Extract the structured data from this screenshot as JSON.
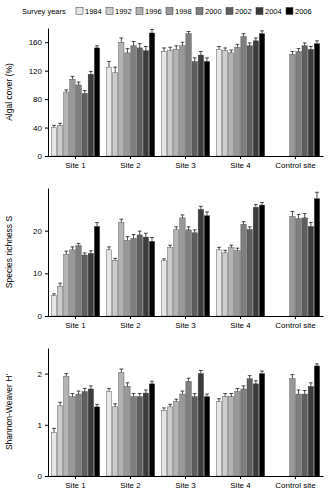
{
  "chart_data": [
    {
      "type": "bar",
      "y_label": "Algal cover (%)",
      "legend_title": "Survey years",
      "legend": "top",
      "categories": [
        "Site 1",
        "Site 2",
        "Site 3",
        "Site 4",
        "Control site"
      ],
      "ylim": [
        0,
        180
      ],
      "yticks": [
        0,
        40,
        80,
        120,
        160
      ],
      "series": [
        {
          "name": "1984",
          "color": "#e6e6e6",
          "values": [
            40,
            125,
            147,
            150,
            null
          ],
          "errors": [
            3,
            8,
            5,
            4,
            null
          ]
        },
        {
          "name": "1992",
          "color": "#cccccc",
          "values": [
            43,
            117,
            148,
            148,
            null
          ],
          "errors": [
            3,
            8,
            5,
            4,
            null
          ]
        },
        {
          "name": "1996",
          "color": "#b3b3b3",
          "values": [
            90,
            160,
            150,
            145,
            null
          ],
          "errors": [
            3,
            6,
            5,
            4,
            null
          ]
        },
        {
          "name": "1998",
          "color": "#999999",
          "values": [
            108,
            145,
            155,
            153,
            143
          ],
          "errors": [
            4,
            6,
            5,
            4,
            4
          ]
        },
        {
          "name": "2000",
          "color": "#7f7f7f",
          "values": [
            100,
            155,
            172,
            168,
            147
          ],
          "errors": [
            4,
            6,
            3,
            4,
            4
          ]
        },
        {
          "name": "2002",
          "color": "#5f5f5f",
          "values": [
            88,
            152,
            133,
            155,
            155
          ],
          "errors": [
            4,
            6,
            5,
            4,
            4
          ]
        },
        {
          "name": "2004",
          "color": "#3c3c3c",
          "values": [
            115,
            148,
            142,
            162,
            150
          ],
          "errors": [
            4,
            6,
            5,
            4,
            4
          ]
        },
        {
          "name": "2006",
          "color": "#000000",
          "values": [
            152,
            173,
            133,
            172,
            158
          ],
          "errors": [
            3,
            5,
            5,
            4,
            4
          ]
        }
      ]
    },
    {
      "type": "bar",
      "y_label": "Species richness S",
      "categories": [
        "Site 1",
        "Site 2",
        "Site 3",
        "Site 4",
        "Control site"
      ],
      "ylim": [
        0,
        30
      ],
      "yticks": [
        0,
        10,
        20
      ],
      "series": [
        {
          "color": "#e6e6e6",
          "values": [
            4.8,
            15.5,
            13,
            15.5,
            null
          ],
          "errors": [
            0.4,
            0.7,
            0.4,
            0.6,
            null
          ]
        },
        {
          "color": "#cccccc",
          "values": [
            7,
            13,
            16,
            14.8,
            null
          ],
          "errors": [
            0.7,
            0.5,
            0.6,
            0.6,
            null
          ]
        },
        {
          "color": "#b3b3b3",
          "values": [
            14.5,
            22,
            20.2,
            16,
            null
          ],
          "errors": [
            0.7,
            0.7,
            0.7,
            0.6,
            null
          ]
        },
        {
          "color": "#999999",
          "values": [
            15.5,
            17.7,
            23,
            15.3,
            23.3
          ],
          "errors": [
            0.7,
            0.9,
            0.7,
            0.6,
            1.2
          ]
        },
        {
          "color": "#7f7f7f",
          "values": [
            16.5,
            18.2,
            20.2,
            21.5,
            22.8
          ],
          "errors": [
            0.5,
            0.9,
            0.7,
            0.6,
            1.0
          ]
        },
        {
          "color": "#5f5f5f",
          "values": [
            14.3,
            19,
            19.5,
            20.3,
            23
          ],
          "errors": [
            0.5,
            0.9,
            0.7,
            0.6,
            1.0
          ]
        },
        {
          "color": "#3c3c3c",
          "values": [
            14.7,
            18.5,
            25,
            25.5,
            21
          ],
          "errors": [
            0.6,
            0.9,
            0.7,
            0.6,
            0.9
          ]
        },
        {
          "color": "#000000",
          "values": [
            21,
            17.5,
            23.5,
            26,
            27.5
          ],
          "errors": [
            0.9,
            0.9,
            0.9,
            0.6,
            1.5
          ]
        }
      ]
    },
    {
      "type": "bar",
      "y_label": "Shannon-Weaver H'",
      "categories": [
        "Site 1",
        "Site 2",
        "Site 3",
        "Site 4",
        "Control site"
      ],
      "ylim": [
        0,
        2.5
      ],
      "yticks": [
        0,
        1,
        2
      ],
      "series": [
        {
          "color": "#e6e6e6",
          "values": [
            0.85,
            1.65,
            1.28,
            1.45,
            null
          ],
          "errors": [
            0.08,
            0.06,
            0.05,
            0.06,
            null
          ]
        },
        {
          "color": "#cccccc",
          "values": [
            1.37,
            1.35,
            1.35,
            1.55,
            null
          ],
          "errors": [
            0.07,
            0.06,
            0.05,
            0.06,
            null
          ]
        },
        {
          "color": "#b3b3b3",
          "values": [
            1.95,
            2.02,
            1.45,
            1.55,
            null
          ],
          "errors": [
            0.05,
            0.07,
            0.05,
            0.06,
            null
          ]
        },
        {
          "color": "#999999",
          "values": [
            1.55,
            1.75,
            1.6,
            1.65,
            1.9
          ],
          "errors": [
            0.06,
            0.07,
            0.06,
            0.06,
            0.08
          ]
        },
        {
          "color": "#7f7f7f",
          "values": [
            1.6,
            1.55,
            1.85,
            1.7,
            1.6
          ],
          "errors": [
            0.06,
            0.06,
            0.06,
            0.06,
            0.08
          ]
        },
        {
          "color": "#5f5f5f",
          "values": [
            1.65,
            1.55,
            1.55,
            1.9,
            1.6
          ],
          "errors": [
            0.06,
            0.06,
            0.06,
            0.06,
            0.07
          ]
        },
        {
          "color": "#3c3c3c",
          "values": [
            1.7,
            1.62,
            2.0,
            1.8,
            1.75
          ],
          "errors": [
            0.06,
            0.06,
            0.06,
            0.06,
            0.07
          ]
        },
        {
          "color": "#000000",
          "values": [
            1.35,
            1.8,
            1.55,
            2.0,
            2.15
          ],
          "errors": [
            0.05,
            0.05,
            0.05,
            0.05,
            0.04
          ]
        }
      ]
    }
  ]
}
